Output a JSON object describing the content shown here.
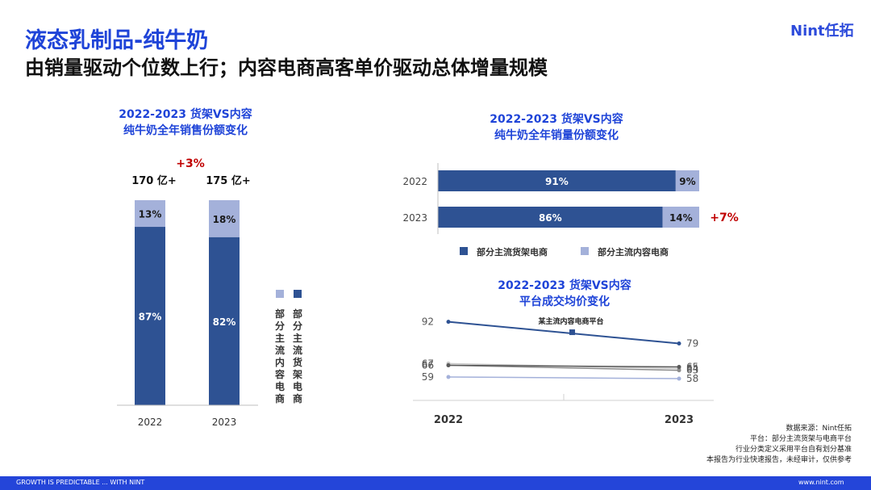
{
  "header": {
    "title": "液态乳制品-纯牛奶",
    "subtitle": "由销量驱动个位数上行；内容电商高客单价驱动总体增量规模",
    "brand": "Nint任拓"
  },
  "colors": {
    "shelf": "#2e5293",
    "content": "#a4b1da",
    "title_blue": "#1f44d8",
    "accent_red": "#c00000",
    "footer": "#2445d9"
  },
  "chart1": {
    "title_line1": "2022-2023 货架VS内容",
    "title_line2": "纯牛奶全年销售份额变化",
    "growth_label": "+3%",
    "totals": [
      "170 亿+",
      "175 亿+"
    ],
    "legend": [
      {
        "label": "部分主流内容电商",
        "color": "#a4b1da"
      },
      {
        "label": "部分主流货架电商",
        "color": "#2e5293"
      }
    ]
  },
  "chart2": {
    "title_line1": "2022-2023 货架VS内容",
    "title_line2": "纯牛奶全年销量份额变化",
    "growth_label": "+7%",
    "legend": [
      {
        "label": "部分主流货架电商",
        "color": "#2e5293"
      },
      {
        "label": "部分主流内容电商",
        "color": "#a4b1da"
      }
    ]
  },
  "chart3": {
    "title_line1": "2022-2023 货架VS内容",
    "title_line2": "平台成交均价变化",
    "annotation": "某主流内容电商平台"
  },
  "chart_data": [
    {
      "type": "bar",
      "stacked": true,
      "orientation": "vertical",
      "categories": [
        "2022",
        "2023"
      ],
      "series": [
        {
          "name": "部分主流货架电商",
          "values": [
            87,
            82
          ],
          "labels": [
            "87%",
            "82%"
          ]
        },
        {
          "name": "部分主流内容电商",
          "values": [
            13,
            18
          ],
          "labels": [
            "13%",
            "18%"
          ]
        }
      ],
      "ylim": [
        0,
        100
      ]
    },
    {
      "type": "bar",
      "stacked": true,
      "orientation": "horizontal",
      "categories": [
        "2022",
        "2023"
      ],
      "series": [
        {
          "name": "部分主流货架电商",
          "values": [
            91,
            86
          ],
          "labels": [
            "91%",
            "86%"
          ]
        },
        {
          "name": "部分主流内容电商",
          "values": [
            9,
            14
          ],
          "labels": [
            "9%",
            "14%"
          ]
        }
      ],
      "xlim": [
        0,
        100
      ]
    },
    {
      "type": "line",
      "x": [
        "2022",
        "2023"
      ],
      "series": [
        {
          "values": [
            92,
            79
          ],
          "labels": [
            "92",
            "79"
          ],
          "color": "#2e5293",
          "marker": true
        },
        {
          "values": [
            67,
            64
          ],
          "labels": [
            "67",
            "64"
          ],
          "color": "#c8c8c8"
        },
        {
          "values": [
            66,
            63
          ],
          "labels": [
            "66",
            "63"
          ],
          "color": "#8c8c8c"
        },
        {
          "values": [
            66,
            65
          ],
          "labels": [
            "66",
            "65"
          ],
          "color": "#5a5a5a"
        },
        {
          "values": [
            59,
            58
          ],
          "labels": [
            "59",
            "58"
          ],
          "color": "#a4b1da"
        }
      ],
      "ylim": [
        45,
        100
      ]
    }
  ],
  "sources": [
    "数据来源：Nint任拓",
    "平台：部分主流货架与电商平台",
    "行业分类定义采用平台自有划分基准",
    "本报告为行业快速报告，未经审计，仅供参考"
  ],
  "footer": {
    "left": "GROWTH IS PREDICTABLE ... WITH NINT",
    "right": "www.nint.com"
  }
}
